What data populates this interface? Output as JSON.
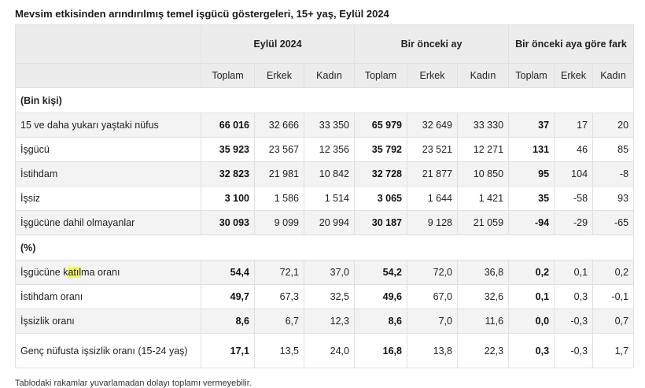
{
  "title": "Mevsim etkisinden arındırılmış temel işgücü göstergeleri, 15+ yaş, Eylül 2024",
  "header": {
    "groups": [
      "Eylül 2024",
      "Bir önceki ay",
      "Bir önceki aya göre fark"
    ],
    "subcols": [
      "Toplam",
      "Erkek",
      "Kadın",
      "Toplam",
      "Erkek",
      "Kadın",
      "Toplam",
      "Erkek",
      "Kadın"
    ]
  },
  "sections": {
    "thousands": "(Bin kişi)",
    "percent": "(%)"
  },
  "rows": [
    {
      "label": "15 ve daha yukarı yaştaki nüfus",
      "values": [
        "66 016",
        "32 666",
        "33 350",
        "65 979",
        "32 649",
        "33 330",
        "37",
        "17",
        "20"
      ]
    },
    {
      "label": "İşgücü",
      "values": [
        "35 923",
        "23 567",
        "12 356",
        "35 792",
        "23 521",
        "12 271",
        "131",
        "46",
        "85"
      ]
    },
    {
      "label": "İstihdam",
      "values": [
        "32 823",
        "21 981",
        "10 842",
        "32 728",
        "21 877",
        "10 850",
        "95",
        "104",
        "-8"
      ]
    },
    {
      "label": "İşsiz",
      "values": [
        "3 100",
        "1 586",
        "1 514",
        "3 065",
        "1 644",
        "1 421",
        "35",
        "-58",
        "93"
      ]
    },
    {
      "label": "İşgücüne dahil olmayanlar",
      "values": [
        "30 093",
        "9 099",
        "20 994",
        "30 187",
        "9 128",
        "21 059",
        "-94",
        "-29",
        "-65"
      ]
    },
    {
      "label_parts": [
        "İşgücüne k",
        "atıl",
        "ma oranı"
      ],
      "values": [
        "54,4",
        "72,1",
        "37,0",
        "54,2",
        "72,0",
        "36,8",
        "0,2",
        "0,1",
        "0,2"
      ]
    },
    {
      "label": "İstihdam oranı",
      "values": [
        "49,7",
        "67,3",
        "32,5",
        "49,6",
        "67,0",
        "32,6",
        "0,1",
        "0,3",
        "-0,1"
      ]
    },
    {
      "label": "İşsizlik oranı",
      "values": [
        "8,6",
        "6,7",
        "12,3",
        "8,6",
        "7,0",
        "11,6",
        "0,0",
        "-0,3",
        "0,7"
      ]
    },
    {
      "label": "Genç nüfusta işsizlik oranı (15-24 yaş)",
      "values": [
        "17,1",
        "13,5",
        "24,0",
        "16,8",
        "13,8",
        "22,3",
        "0,3",
        "-0,3",
        "1,7"
      ]
    }
  ],
  "footnote": "Tablodaki rakamlar yuvarlamadan dolayı toplamı vermeyebilir."
}
